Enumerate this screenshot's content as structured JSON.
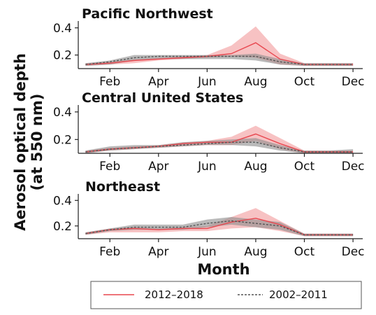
{
  "figure": {
    "ylabel_line1": "Aerosol optical depth",
    "ylabel_line2": "(at 550 nm)",
    "xlabel": "Month",
    "colors": {
      "recent": "#e8474f",
      "recent_band": "#f4a8aa",
      "past": "#555555",
      "past_band": "#8c8c8c"
    }
  },
  "chart_data": [
    {
      "type": "line",
      "title": "Pacific Northwest",
      "x": [
        1,
        2,
        3,
        4,
        5,
        6,
        7,
        8,
        9,
        10,
        11,
        12
      ],
      "x_tick_values": [
        2,
        4,
        6,
        8,
        10,
        12
      ],
      "x_tick_labels": [
        "Feb",
        "Apr",
        "Jun",
        "Aug",
        "Oct",
        "Dec"
      ],
      "y_ticks": [
        0.2,
        0.4
      ],
      "y_tick_labels": [
        "0.2",
        "0.4"
      ],
      "xlim": [
        0.7,
        12.4
      ],
      "ylim": [
        0.1,
        0.44
      ],
      "series": [
        {
          "name": "2012–2018",
          "style": "solid",
          "color": "#e8474f",
          "values": [
            0.13,
            0.14,
            0.16,
            0.17,
            0.18,
            0.19,
            0.21,
            0.29,
            0.17,
            0.13,
            0.13,
            0.13
          ],
          "lower": [
            0.12,
            0.13,
            0.14,
            0.16,
            0.17,
            0.18,
            0.19,
            0.18,
            0.13,
            0.12,
            0.12,
            0.12
          ],
          "upper": [
            0.14,
            0.15,
            0.17,
            0.18,
            0.19,
            0.2,
            0.27,
            0.41,
            0.21,
            0.14,
            0.14,
            0.14
          ]
        },
        {
          "name": "2002–2011",
          "style": "dashed",
          "color": "#555555",
          "values": [
            0.13,
            0.15,
            0.18,
            0.19,
            0.19,
            0.19,
            0.19,
            0.19,
            0.15,
            0.13,
            0.13,
            0.13
          ],
          "lower": [
            0.12,
            0.13,
            0.16,
            0.17,
            0.17,
            0.17,
            0.17,
            0.16,
            0.13,
            0.12,
            0.12,
            0.12
          ],
          "upper": [
            0.14,
            0.16,
            0.2,
            0.2,
            0.2,
            0.2,
            0.2,
            0.21,
            0.17,
            0.14,
            0.14,
            0.14
          ]
        }
      ]
    },
    {
      "type": "line",
      "title": "Central United States",
      "x": [
        1,
        2,
        3,
        4,
        5,
        6,
        7,
        8,
        9,
        10,
        11,
        12
      ],
      "x_tick_values": [
        2,
        4,
        6,
        8,
        10,
        12
      ],
      "x_tick_labels": [
        "Feb",
        "Apr",
        "Jun",
        "Aug",
        "Oct",
        "Dec"
      ],
      "y_ticks": [
        0.2,
        0.4
      ],
      "y_tick_labels": [
        "0.2",
        "0.4"
      ],
      "xlim": [
        0.7,
        12.4
      ],
      "ylim": [
        0.1,
        0.44
      ],
      "series": [
        {
          "name": "2012–2018",
          "style": "solid",
          "color": "#e8474f",
          "values": [
            0.11,
            0.13,
            0.14,
            0.15,
            0.17,
            0.18,
            0.18,
            0.24,
            0.17,
            0.11,
            0.11,
            0.11
          ],
          "lower": [
            0.1,
            0.12,
            0.13,
            0.14,
            0.15,
            0.16,
            0.16,
            0.19,
            0.13,
            0.1,
            0.1,
            0.1
          ],
          "upper": [
            0.12,
            0.14,
            0.15,
            0.16,
            0.18,
            0.19,
            0.22,
            0.3,
            0.21,
            0.12,
            0.12,
            0.12
          ]
        },
        {
          "name": "2002–2011",
          "style": "dashed",
          "color": "#555555",
          "values": [
            0.11,
            0.13,
            0.14,
            0.15,
            0.16,
            0.17,
            0.18,
            0.18,
            0.14,
            0.11,
            0.11,
            0.11
          ],
          "lower": [
            0.1,
            0.12,
            0.13,
            0.14,
            0.15,
            0.16,
            0.16,
            0.15,
            0.12,
            0.1,
            0.1,
            0.1
          ],
          "upper": [
            0.12,
            0.15,
            0.16,
            0.16,
            0.18,
            0.19,
            0.2,
            0.21,
            0.16,
            0.12,
            0.12,
            0.13
          ]
        }
      ]
    },
    {
      "type": "line",
      "title": "Northeast",
      "x": [
        1,
        2,
        3,
        4,
        5,
        6,
        7,
        8,
        9,
        10,
        11,
        12
      ],
      "x_tick_values": [
        2,
        4,
        6,
        8,
        10,
        12
      ],
      "x_tick_labels": [
        "Feb",
        "Apr",
        "Jun",
        "Aug",
        "Oct",
        "Dec"
      ],
      "y_ticks": [
        0.2,
        0.4
      ],
      "y_tick_labels": [
        "0.2",
        "0.4"
      ],
      "xlim": [
        0.7,
        12.4
      ],
      "ylim": [
        0.1,
        0.44
      ],
      "series": [
        {
          "name": "2012–2018",
          "style": "solid",
          "color": "#e8474f",
          "values": [
            0.14,
            0.17,
            0.18,
            0.17,
            0.18,
            0.18,
            0.23,
            0.26,
            0.21,
            0.13,
            0.13,
            0.13
          ],
          "lower": [
            0.13,
            0.15,
            0.15,
            0.15,
            0.16,
            0.16,
            0.18,
            0.19,
            0.16,
            0.12,
            0.12,
            0.12
          ],
          "upper": [
            0.15,
            0.18,
            0.19,
            0.18,
            0.19,
            0.2,
            0.27,
            0.34,
            0.24,
            0.14,
            0.14,
            0.14
          ]
        },
        {
          "name": "2002–2011",
          "style": "dashed",
          "color": "#555555",
          "values": [
            0.14,
            0.17,
            0.19,
            0.19,
            0.19,
            0.22,
            0.24,
            0.22,
            0.2,
            0.13,
            0.13,
            0.13
          ],
          "lower": [
            0.13,
            0.16,
            0.17,
            0.17,
            0.17,
            0.19,
            0.21,
            0.19,
            0.17,
            0.12,
            0.12,
            0.12
          ],
          "upper": [
            0.15,
            0.18,
            0.21,
            0.21,
            0.21,
            0.25,
            0.27,
            0.25,
            0.23,
            0.14,
            0.14,
            0.14
          ]
        }
      ]
    }
  ],
  "legend": {
    "items": [
      {
        "label": "2012–2018",
        "style": "solid",
        "color": "#e8474f"
      },
      {
        "label": "2002–2011",
        "style": "dashed",
        "color": "#555555"
      }
    ]
  }
}
